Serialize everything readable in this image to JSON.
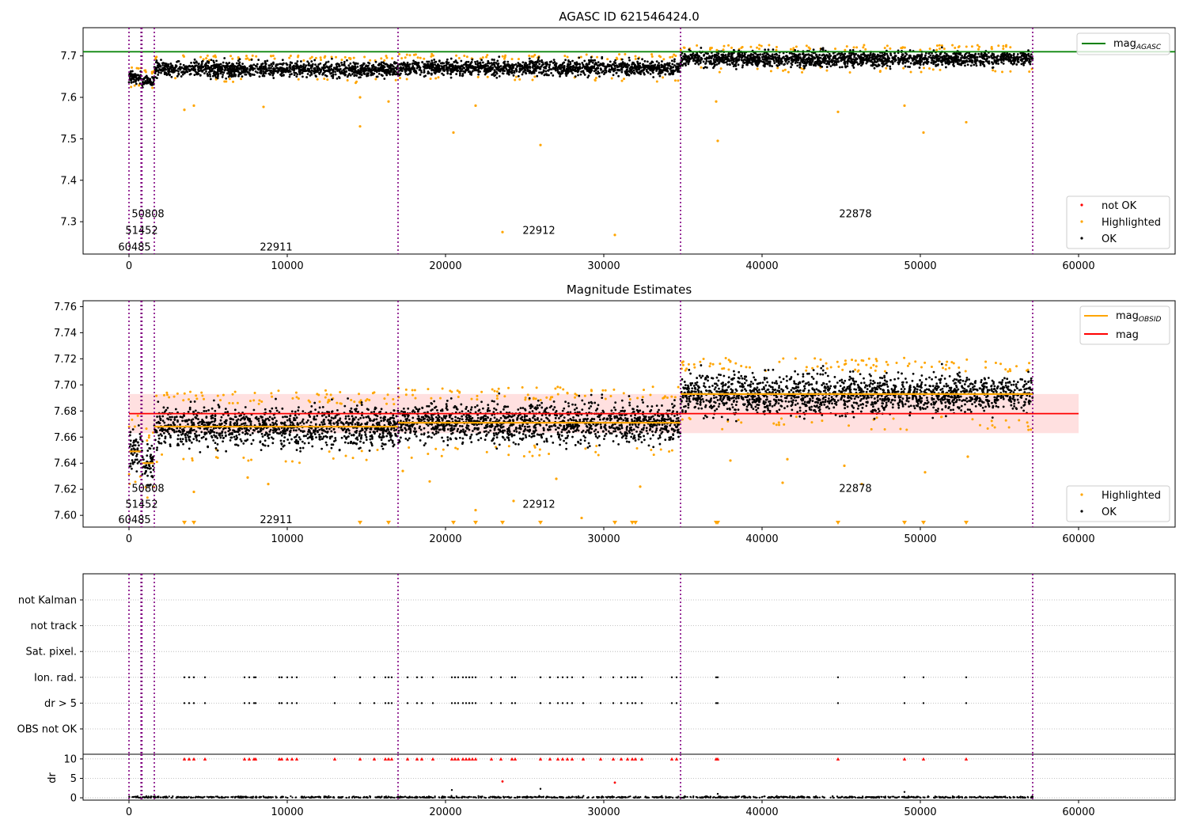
{
  "chart_data": [
    {
      "type": "scatter",
      "title": "AGASC ID 621546424.0",
      "xlim": [
        -2900,
        66100
      ],
      "ylim": [
        7.222,
        7.768
      ],
      "xticks": [
        0,
        10000,
        20000,
        30000,
        40000,
        50000,
        60000
      ],
      "xtick_labels": [
        "0",
        "10000",
        "20000",
        "30000",
        "40000",
        "50000",
        "60000"
      ],
      "yticks": [
        7.3,
        7.4,
        7.5,
        7.6,
        7.7
      ],
      "ytick_labels": [
        "7.3",
        "7.4",
        "7.5",
        "7.6",
        "7.7"
      ],
      "grid": false,
      "reference_line": {
        "label_main": "mag",
        "label_sub": "AGASC",
        "y": 7.71,
        "color": "#008000"
      },
      "obsid_boundaries": [
        0,
        760,
        820,
        1600,
        17000,
        34850,
        57100
      ],
      "obsid_labels": [
        {
          "text": "60485",
          "x": 350,
          "y": 7.24
        },
        {
          "text": "51452",
          "x": 800,
          "y": 7.28
        },
        {
          "text": "50808",
          "x": 1200,
          "y": 7.32
        },
        {
          "text": "22911",
          "x": 9300,
          "y": 7.24
        },
        {
          "text": "22912",
          "x": 25900,
          "y": 7.28
        },
        {
          "text": "22878",
          "x": 45900,
          "y": 7.32
        }
      ],
      "ok_segments": [
        {
          "x": [
            0,
            760
          ],
          "center": 7.648,
          "spread": 0.007
        },
        {
          "x": [
            820,
            1600
          ],
          "center": 7.64,
          "spread": 0.007
        },
        {
          "x": [
            1600,
            17000
          ],
          "center": 7.668,
          "spread": 0.009
        },
        {
          "x": [
            17000,
            34850
          ],
          "center": 7.671,
          "spread": 0.009
        },
        {
          "x": [
            34850,
            57100
          ],
          "center": 7.693,
          "spread": 0.009
        }
      ],
      "highlighted_outliers": [
        {
          "x": 3500,
          "y": 7.57
        },
        {
          "x": 4100,
          "y": 7.58
        },
        {
          "x": 8500,
          "y": 7.577
        },
        {
          "x": 14600,
          "y": 7.53
        },
        {
          "x": 14600,
          "y": 7.6
        },
        {
          "x": 16400,
          "y": 7.59
        },
        {
          "x": 20500,
          "y": 7.515
        },
        {
          "x": 21900,
          "y": 7.58
        },
        {
          "x": 23600,
          "y": 7.275
        },
        {
          "x": 26000,
          "y": 7.485
        },
        {
          "x": 30700,
          "y": 7.268
        },
        {
          "x": 37200,
          "y": 7.495
        },
        {
          "x": 37100,
          "y": 7.59
        },
        {
          "x": 44800,
          "y": 7.565
        },
        {
          "x": 49000,
          "y": 7.58
        },
        {
          "x": 50200,
          "y": 7.515
        },
        {
          "x": 52900,
          "y": 7.54
        }
      ],
      "legend": [
        {
          "label": "not OK",
          "color": "#ff0000"
        },
        {
          "label": "Highlighted",
          "color": "#ffa500"
        },
        {
          "label": "OK",
          "color": "#000000"
        }
      ]
    },
    {
      "type": "scatter",
      "title": "Magnitude Estimates",
      "xlim": [
        -2900,
        66100
      ],
      "ylim": [
        7.591,
        7.7645
      ],
      "xticks": [
        0,
        10000,
        20000,
        30000,
        40000,
        50000,
        60000
      ],
      "xtick_labels": [
        "0",
        "10000",
        "20000",
        "30000",
        "40000",
        "50000",
        "60000"
      ],
      "yticks": [
        7.6,
        7.62,
        7.64,
        7.66,
        7.68,
        7.7,
        7.72,
        7.74,
        7.76
      ],
      "ytick_labels": [
        "7.60",
        "7.62",
        "7.64",
        "7.66",
        "7.68",
        "7.70",
        "7.72",
        "7.74",
        "7.76"
      ],
      "grid": false,
      "mag_line": {
        "label": "mag",
        "y": 7.678,
        "band": [
          7.663,
          7.693
        ],
        "x": [
          0,
          60000
        ],
        "color": "#ff0000"
      },
      "obsid_mag": {
        "label_main": "mag",
        "label_sub": "OBSID",
        "color": "#ffa500",
        "segments": [
          {
            "x": [
              0,
              760
            ],
            "y": 7.649
          },
          {
            "x": [
              820,
              1600
            ],
            "y": 7.64
          },
          {
            "x": [
              1600,
              17000
            ],
            "y": 7.668
          },
          {
            "x": [
              17000,
              34850
            ],
            "y": 7.671
          },
          {
            "x": [
              34850,
              57100
            ],
            "y": 7.693
          }
        ]
      },
      "obsid_boundaries": [
        0,
        760,
        820,
        1600,
        17000,
        34850,
        57100
      ],
      "obsid_labels": [
        {
          "text": "60485",
          "x": 350,
          "y": 7.597
        },
        {
          "text": "51452",
          "x": 800,
          "y": 7.609
        },
        {
          "text": "50808",
          "x": 1200,
          "y": 7.621
        },
        {
          "text": "22911",
          "x": 9300,
          "y": 7.597
        },
        {
          "text": "22912",
          "x": 25900,
          "y": 7.609
        },
        {
          "text": "22878",
          "x": 45900,
          "y": 7.621
        }
      ],
      "below_axis_markers_x": [
        3500,
        4100,
        14600,
        16400,
        20500,
        21900,
        23600,
        26000,
        30700,
        31800,
        32000,
        37100,
        37200,
        44800,
        49000,
        50200,
        52900
      ],
      "highlighted_outliers": [
        {
          "x": 4100,
          "y": 7.618
        },
        {
          "x": 7500,
          "y": 7.629
        },
        {
          "x": 8800,
          "y": 7.624
        },
        {
          "x": 17300,
          "y": 7.634
        },
        {
          "x": 19000,
          "y": 7.626
        },
        {
          "x": 21900,
          "y": 7.604
        },
        {
          "x": 24300,
          "y": 7.611
        },
        {
          "x": 27000,
          "y": 7.628
        },
        {
          "x": 28600,
          "y": 7.598
        },
        {
          "x": 32300,
          "y": 7.622
        },
        {
          "x": 38000,
          "y": 7.642
        },
        {
          "x": 41300,
          "y": 7.625
        },
        {
          "x": 41600,
          "y": 7.643
        },
        {
          "x": 45200,
          "y": 7.638
        },
        {
          "x": 46300,
          "y": 7.624
        },
        {
          "x": 50300,
          "y": 7.633
        },
        {
          "x": 53000,
          "y": 7.645
        }
      ],
      "legend": [
        {
          "label": "Highlighted",
          "color": "#ffa500"
        },
        {
          "label": "OK",
          "color": "#000000"
        }
      ]
    },
    {
      "type": "scatter",
      "title": "",
      "xlim": [
        -2900,
        66100
      ],
      "xticks": [
        0,
        10000,
        20000,
        30000,
        40000,
        50000,
        60000
      ],
      "xtick_labels": [
        "0",
        "10000",
        "20000",
        "30000",
        "40000",
        "50000",
        "60000"
      ],
      "flag_categories": [
        "not Kalman",
        "not track",
        "Sat. pixel.",
        "Ion. rad.",
        "dr > 5",
        "OBS not OK"
      ],
      "flag_events_x": [
        3500,
        3800,
        4100,
        4800,
        7300,
        7600,
        7900,
        8000,
        9500,
        9650,
        10000,
        10300,
        10600,
        13000,
        14600,
        15500,
        16200,
        16400,
        16600,
        17600,
        18200,
        18500,
        19200,
        20400,
        20600,
        20800,
        21100,
        21300,
        21500,
        21700,
        21900,
        22900,
        23500,
        24200,
        24400,
        26000,
        26600,
        27100,
        27400,
        27700,
        28000,
        28700,
        29800,
        30600,
        31100,
        31500,
        31800,
        32000,
        32400,
        34300,
        34600,
        37100,
        37200,
        44800,
        49000,
        50200,
        52900
      ],
      "obsid_boundaries": [
        0,
        760,
        820,
        1600,
        17000,
        34850,
        57100
      ],
      "dr_panel": {
        "ylabel": "dr",
        "ylim": [
          -0.6,
          11.2
        ],
        "yticks": [
          0,
          5,
          10
        ],
        "ytick_labels": [
          "0",
          "5",
          "10"
        ],
        "dr_baseline_range": [
          0,
          57100
        ],
        "dr_outliers": [
          {
            "x": 20400,
            "y": 2.0
          },
          {
            "x": 23600,
            "y": 4.2
          },
          {
            "x": 26000,
            "y": 2.3
          },
          {
            "x": 30700,
            "y": 3.9
          },
          {
            "x": 49000,
            "y": 1.5
          },
          {
            "x": 37200,
            "y": 1.0
          }
        ]
      }
    }
  ]
}
